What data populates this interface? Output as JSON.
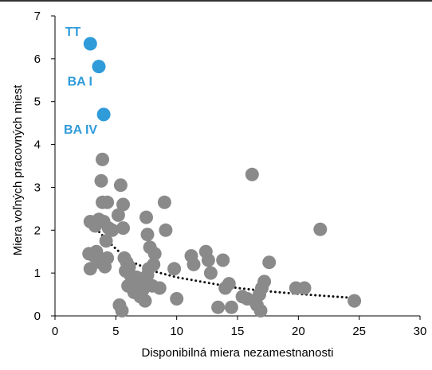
{
  "chart_data": {
    "type": "scatter",
    "title": "",
    "xlabel": "Disponibilná miera nezamestnanosti",
    "ylabel": "Miera voľných pracovných miest",
    "xlim": [
      0,
      30
    ],
    "ylim": [
      0,
      7
    ],
    "xticks": [
      0,
      5,
      10,
      15,
      20,
      25,
      30
    ],
    "yticks": [
      0,
      1,
      2,
      3,
      4,
      5,
      6,
      7
    ],
    "grid": "none",
    "legend": "none",
    "colors": {
      "highlight": "#2f9bd9",
      "regular": "#8a8a8a",
      "trend": "#111111",
      "axis": "#000000"
    },
    "highlighted_points": [
      {
        "label": "TT",
        "x": 2.9,
        "y": 6.35
      },
      {
        "label": "BA I",
        "x": 3.6,
        "y": 5.82
      },
      {
        "label": "BA IV",
        "x": 4.0,
        "y": 4.7
      }
    ],
    "points": [
      [
        3.9,
        3.65
      ],
      [
        3.8,
        3.15
      ],
      [
        3.9,
        2.65
      ],
      [
        4.3,
        2.65
      ],
      [
        3.6,
        2.25
      ],
      [
        4.0,
        2.2
      ],
      [
        4.4,
        2.05
      ],
      [
        4.7,
        2.0
      ],
      [
        2.9,
        2.2
      ],
      [
        3.3,
        2.1
      ],
      [
        4.2,
        1.75
      ],
      [
        3.4,
        1.5
      ],
      [
        2.8,
        1.45
      ],
      [
        3.2,
        1.4
      ],
      [
        2.9,
        1.1
      ],
      [
        3.7,
        1.25
      ],
      [
        4.1,
        1.15
      ],
      [
        4.3,
        1.35
      ],
      [
        5.4,
        3.05
      ],
      [
        5.6,
        2.6
      ],
      [
        5.2,
        2.35
      ],
      [
        5.6,
        2.05
      ],
      [
        5.7,
        1.35
      ],
      [
        5.9,
        1.25
      ],
      [
        6.1,
        1.15
      ],
      [
        5.8,
        1.05
      ],
      [
        6.2,
        0.95
      ],
      [
        6.4,
        0.85
      ],
      [
        6.7,
        0.9
      ],
      [
        6.9,
        0.75
      ],
      [
        6.0,
        0.7
      ],
      [
        6.5,
        0.55
      ],
      [
        7.2,
        0.6
      ],
      [
        7.0,
        0.45
      ],
      [
        7.4,
        0.35
      ],
      [
        5.3,
        0.25
      ],
      [
        5.5,
        0.12
      ],
      [
        7.5,
        2.3
      ],
      [
        7.6,
        1.9
      ],
      [
        7.8,
        1.6
      ],
      [
        8.2,
        1.45
      ],
      [
        8.1,
        1.2
      ],
      [
        7.7,
        1.1
      ],
      [
        7.6,
        0.95
      ],
      [
        8.0,
        0.7
      ],
      [
        8.6,
        0.65
      ],
      [
        7.3,
        0.75
      ],
      [
        9.0,
        2.65
      ],
      [
        9.1,
        2.0
      ],
      [
        9.8,
        1.1
      ],
      [
        10.0,
        0.4
      ],
      [
        11.2,
        1.4
      ],
      [
        11.4,
        1.2
      ],
      [
        12.4,
        1.5
      ],
      [
        12.6,
        1.3
      ],
      [
        12.8,
        1.0
      ],
      [
        13.8,
        1.3
      ],
      [
        14.0,
        0.65
      ],
      [
        14.3,
        0.75
      ],
      [
        13.4,
        0.2
      ],
      [
        14.5,
        0.2
      ],
      [
        15.4,
        0.45
      ],
      [
        15.8,
        0.4
      ],
      [
        16.2,
        3.3
      ],
      [
        16.4,
        0.35
      ],
      [
        16.6,
        0.25
      ],
      [
        16.8,
        0.5
      ],
      [
        17.0,
        0.65
      ],
      [
        17.2,
        0.8
      ],
      [
        17.6,
        1.25
      ],
      [
        16.9,
        0.12
      ],
      [
        19.8,
        0.65
      ],
      [
        20.5,
        0.65
      ],
      [
        21.8,
        2.02
      ],
      [
        24.6,
        0.35
      ]
    ],
    "trendline": {
      "style": "dotted",
      "points": [
        [
          2.8,
          2.3
        ],
        [
          3.5,
          2.0
        ],
        [
          4.5,
          1.7
        ],
        [
          6,
          1.3
        ],
        [
          8,
          1.05
        ],
        [
          10,
          0.9
        ],
        [
          12,
          0.8
        ],
        [
          15,
          0.65
        ],
        [
          18,
          0.56
        ],
        [
          21,
          0.49
        ],
        [
          24.5,
          0.42
        ]
      ]
    }
  }
}
